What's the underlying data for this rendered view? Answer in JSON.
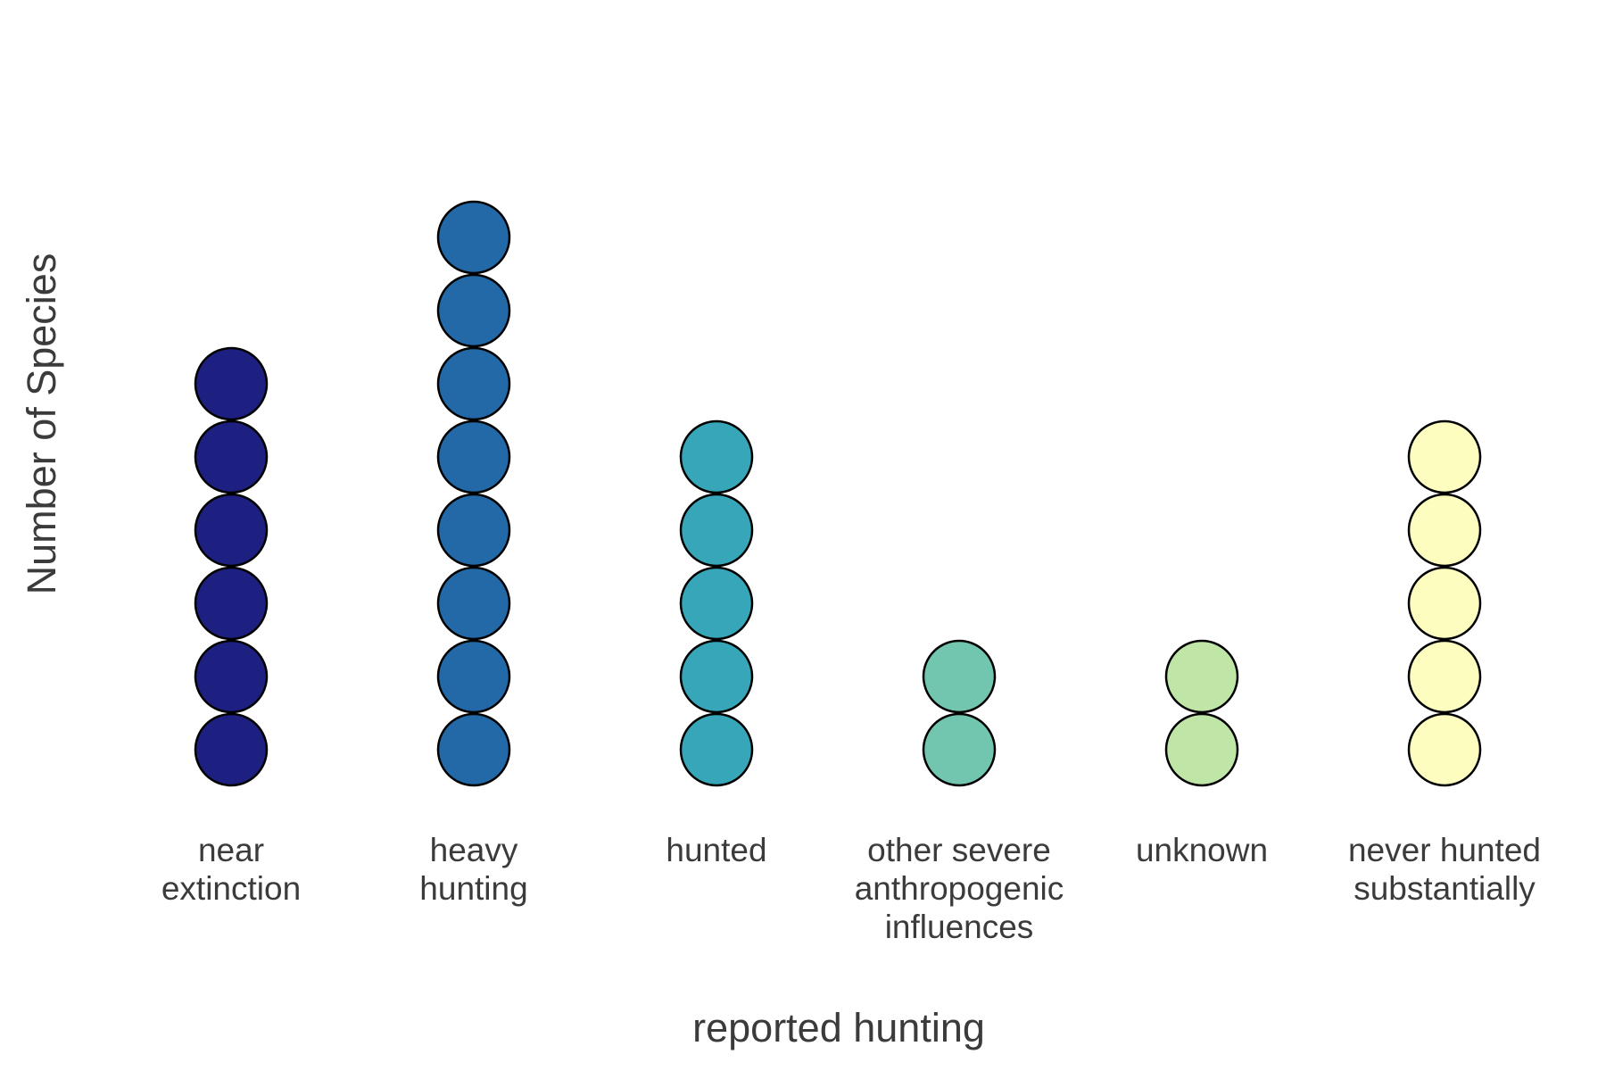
{
  "chart_data": {
    "type": "dot-column",
    "title": "",
    "xlabel": "reported hunting",
    "ylabel": "Number of Species",
    "grid": false,
    "legend": "none",
    "categories": [
      {
        "label_lines": [
          "near",
          "extinction"
        ],
        "value": 6,
        "color": "#1d2080"
      },
      {
        "label_lines": [
          "heavy",
          "hunting"
        ],
        "value": 8,
        "color": "#2369a8"
      },
      {
        "label_lines": [
          "hunted"
        ],
        "value": 5,
        "color": "#37a6b8"
      },
      {
        "label_lines": [
          "other severe",
          "anthropogenic",
          "influences"
        ],
        "value": 2,
        "color": "#72c6b0"
      },
      {
        "label_lines": [
          "unknown"
        ],
        "value": 2,
        "color": "#bfe6a7"
      },
      {
        "label_lines": [
          "never hunted",
          "substantially"
        ],
        "value": 5,
        "color": "#fdfdc0"
      }
    ],
    "stroke_color": "#000000"
  }
}
